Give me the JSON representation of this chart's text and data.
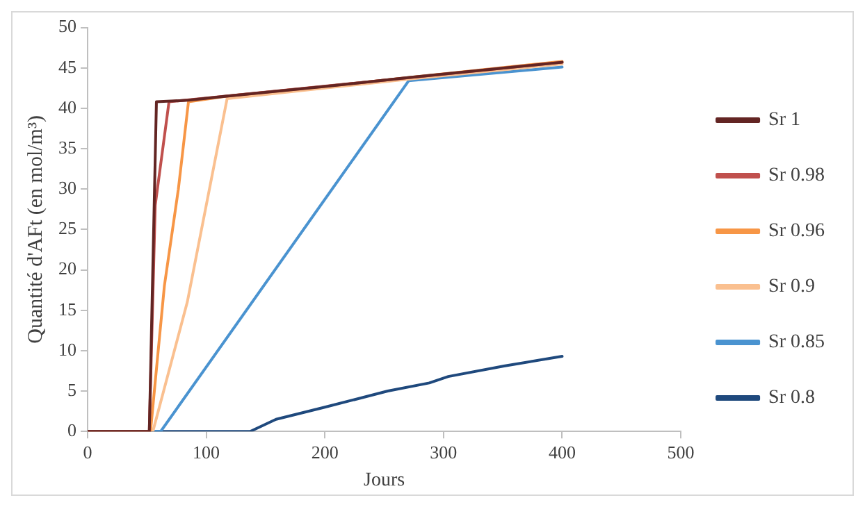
{
  "chart_data": {
    "type": "line",
    "xlabel": "Jours",
    "ylabel": "Quantité d'AFt (en mol/m³)",
    "xlim": [
      0,
      500
    ],
    "xticks": [
      0,
      100,
      200,
      300,
      400,
      500
    ],
    "ylim": [
      0,
      50
    ],
    "yticks": [
      0,
      5,
      10,
      15,
      20,
      25,
      30,
      35,
      40,
      45,
      50
    ],
    "grid": false,
    "legend": "right",
    "marker": "none",
    "line_style": "solid",
    "series": [
      {
        "name": "Sr 1",
        "color": "#632523",
        "x": [
          0,
          52,
          58,
          85,
          117,
          200,
          270,
          400
        ],
        "values": [
          0,
          0,
          40.8,
          41,
          41.5,
          42.7,
          43.8,
          45.7
        ]
      },
      {
        "name": "Sr 0.98",
        "color": "#c0504d",
        "x": [
          0,
          52,
          57,
          68.6,
          400
        ],
        "values": [
          0,
          0,
          28,
          40.8,
          45.7
        ]
      },
      {
        "name": "Sr 0.96",
        "color": "#f79646",
        "x": [
          0,
          53,
          64.7,
          76.5,
          85,
          117,
          200,
          270,
          400
        ],
        "values": [
          0,
          0,
          18,
          30,
          40.8,
          41.5,
          42.7,
          43.8,
          45.8
        ]
      },
      {
        "name": "Sr 0.9",
        "color": "#fac090",
        "x": [
          0,
          55,
          84,
          117.6,
          200,
          270,
          400
        ],
        "values": [
          0,
          0,
          16,
          41.2,
          42.5,
          43.6,
          45.5
        ]
      },
      {
        "name": "Sr 0.85",
        "color": "#4a93d0",
        "x": [
          0,
          61.6,
          270.6,
          400
        ],
        "values": [
          0,
          0,
          43.4,
          45.1
        ]
      },
      {
        "name": "Sr 0.8",
        "color": "#1f497d",
        "x": [
          0,
          137,
          158.8,
          200,
          253,
          288,
          304,
          351,
          400
        ],
        "values": [
          0,
          0,
          1.5,
          3.0,
          5.0,
          6.0,
          6.8,
          8.1,
          9.3
        ]
      }
    ]
  }
}
